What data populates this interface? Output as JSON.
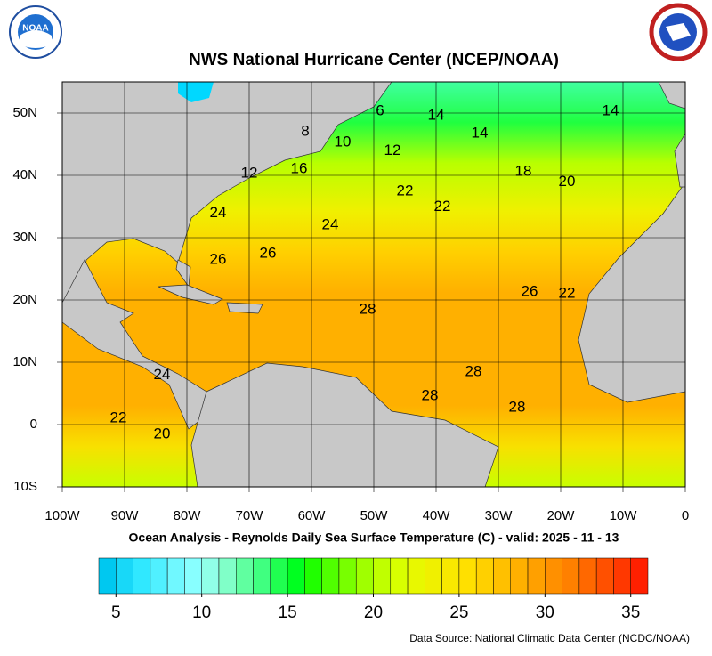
{
  "title": "NWS National Hurricane Center (NCEP/NOAA)",
  "subtitle": "Ocean Analysis - Reynolds Daily Sea Surface Temperature (C) - valid: 2025 - 11 - 13",
  "source": "Data Source: National Climatic Data Center (NCDC/NOAA)",
  "logos": {
    "noaa": "NOAA"
  },
  "map": {
    "xlim": [
      -100,
      0
    ],
    "ylim": [
      -10,
      55
    ],
    "lon_ticks": [
      {
        "value": -100,
        "label": "100W"
      },
      {
        "value": -90,
        "label": "90W"
      },
      {
        "value": -80,
        "label": "80W"
      },
      {
        "value": -70,
        "label": "70W"
      },
      {
        "value": -60,
        "label": "60W"
      },
      {
        "value": -50,
        "label": "50W"
      },
      {
        "value": -40,
        "label": "40W"
      },
      {
        "value": -30,
        "label": "30W"
      },
      {
        "value": -20,
        "label": "20W"
      },
      {
        "value": -10,
        "label": "10W"
      },
      0
    ],
    "lat_ticks": [
      {
        "value": 50,
        "label": "50N"
      },
      {
        "value": 40,
        "label": "40N"
      },
      {
        "value": 30,
        "label": "30N"
      },
      {
        "value": 20,
        "label": "20N"
      },
      {
        "value": 10,
        "label": "10N"
      },
      0,
      {
        "value": -10,
        "label": "10S"
      }
    ],
    "contour_labels": [
      {
        "value": 6,
        "lon": -49,
        "lat": 50.3
      },
      {
        "value": 14,
        "lon": -40,
        "lat": 49.6
      },
      {
        "value": 14,
        "lon": -33,
        "lat": 46.7
      },
      {
        "value": 14,
        "lon": -12,
        "lat": 50.3
      },
      {
        "value": 8,
        "lon": -61,
        "lat": 47
      },
      {
        "value": 10,
        "lon": -55,
        "lat": 45.3
      },
      {
        "value": 12,
        "lon": -47,
        "lat": 43.9
      },
      {
        "value": 12,
        "lon": -70,
        "lat": 40.3
      },
      {
        "value": 16,
        "lon": -62,
        "lat": 41
      },
      {
        "value": 18,
        "lon": -26,
        "lat": 40.6
      },
      {
        "value": 20,
        "lon": -19,
        "lat": 38.9
      },
      {
        "value": 22,
        "lon": -45,
        "lat": 37.4
      },
      {
        "value": 22,
        "lon": -39,
        "lat": 34.9
      },
      {
        "value": 24,
        "lon": -75,
        "lat": 33.9
      },
      {
        "value": 24,
        "lon": -57,
        "lat": 32
      },
      {
        "value": 26,
        "lon": -67,
        "lat": 27.4
      },
      {
        "value": 26,
        "lon": -75,
        "lat": 26.4
      },
      {
        "value": 26,
        "lon": -25,
        "lat": 21.3
      },
      {
        "value": 22,
        "lon": -19,
        "lat": 21
      },
      {
        "value": 28,
        "lon": -51,
        "lat": 18.4
      },
      {
        "value": 28,
        "lon": -34,
        "lat": 8.4
      },
      {
        "value": 28,
        "lon": -41,
        "lat": 4.6
      },
      {
        "value": 28,
        "lon": -27,
        "lat": 2.7
      },
      {
        "value": 24,
        "lon": -84,
        "lat": 7.9
      },
      {
        "value": 22,
        "lon": -91,
        "lat": 1
      },
      {
        "value": 20,
        "lon": -84,
        "lat": -1.6
      }
    ]
  },
  "colorbar": {
    "range": [
      4,
      36
    ],
    "ticks": [
      5,
      10,
      15,
      20,
      25,
      30,
      35
    ],
    "colors": [
      "#00c8f0",
      "#18d8f8",
      "#30e8ff",
      "#50f0ff",
      "#70f8ff",
      "#88ffff",
      "#90ffe8",
      "#80ffc8",
      "#60ffa0",
      "#40ff80",
      "#20ff50",
      "#00ff20",
      "#20ff00",
      "#50ff00",
      "#78ff00",
      "#a0ff00",
      "#c0ff00",
      "#d8ff00",
      "#e8f800",
      "#f0f000",
      "#f8e800",
      "#ffe000",
      "#ffd000",
      "#ffc000",
      "#ffb000",
      "#ffa000",
      "#ff9000",
      "#ff8000",
      "#ff6800",
      "#ff5000",
      "#ff3800",
      "#ff2000"
    ]
  }
}
